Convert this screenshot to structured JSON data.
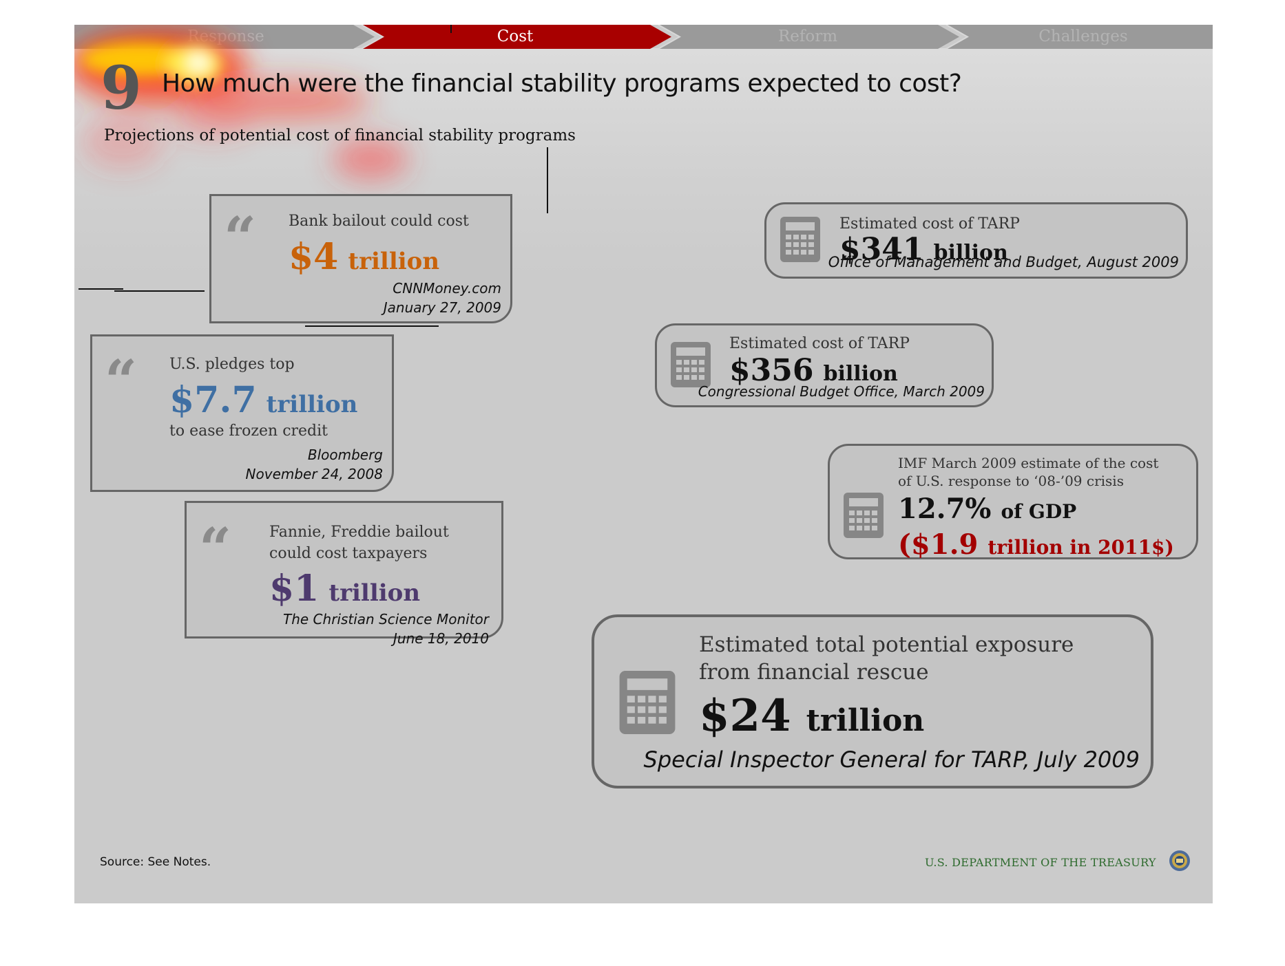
{
  "nav": {
    "tabs": [
      "Response",
      "Cost",
      "Reform",
      "Challenges"
    ],
    "active_index": 1,
    "colors": {
      "active_bg": "#a80000",
      "inactive_bg": "#9a9a9a",
      "active_text": "#ffffff",
      "inactive_text": "#b3b3b3"
    }
  },
  "question": {
    "number": "9",
    "title": "How much were the financial stability programs expected to cost?"
  },
  "subtitle": "Projections of potential cost of financial stability programs",
  "quotes": [
    {
      "label_lines": [
        "Bank bailout could cost"
      ],
      "amount": "$4",
      "unit": "trillion",
      "color": "#c8620a",
      "source": "CNNMoney.com",
      "date": "January 27, 2009"
    },
    {
      "label_lines": [
        "U.S. pledges top"
      ],
      "amount": "$7.7",
      "unit": "trillion",
      "after": "to ease frozen credit",
      "color": "#3f6fa3",
      "source": "Bloomberg",
      "date": "November 24, 2008"
    },
    {
      "label_lines": [
        "Fannie, Freddie bailout",
        "could cost taxpayers"
      ],
      "amount": "$1",
      "unit": "trillion",
      "color": "#4e3a6e",
      "source": "The Christian Science Monitor",
      "date": "June 18, 2010"
    }
  ],
  "estimates": [
    {
      "label": "Estimated cost of TARP",
      "amount": "$341",
      "unit": "billion",
      "source": "Office of Management and Budget, August 2009",
      "icon": "calculator-icon"
    },
    {
      "label": "Estimated cost of TARP",
      "amount": "$356",
      "unit": "billion",
      "source": "Congressional Budget Office, March 2009",
      "icon": "calculator-icon"
    },
    {
      "label_lines": [
        "IMF March 2009 estimate of the cost",
        "of U.S. response to ‘08-’09 crisis"
      ],
      "amount": "12.7%",
      "unit": "of GDP",
      "secondary_amount": "($1.9",
      "secondary_unit": "trillion in 2011$)",
      "secondary_color": "#a30000",
      "icon": "calculator-icon"
    },
    {
      "label_lines": [
        "Estimated total potential exposure",
        "from financial rescue"
      ],
      "amount": "$24",
      "unit": "trillion",
      "source": "Special Inspector General for TARP, July 2009",
      "icon": "calculator-icon"
    }
  ],
  "footer": {
    "source": "Source: See Notes.",
    "agency": "U.S. DEPARTMENT OF THE TREASURY",
    "agency_color": "#2d6a2d"
  }
}
